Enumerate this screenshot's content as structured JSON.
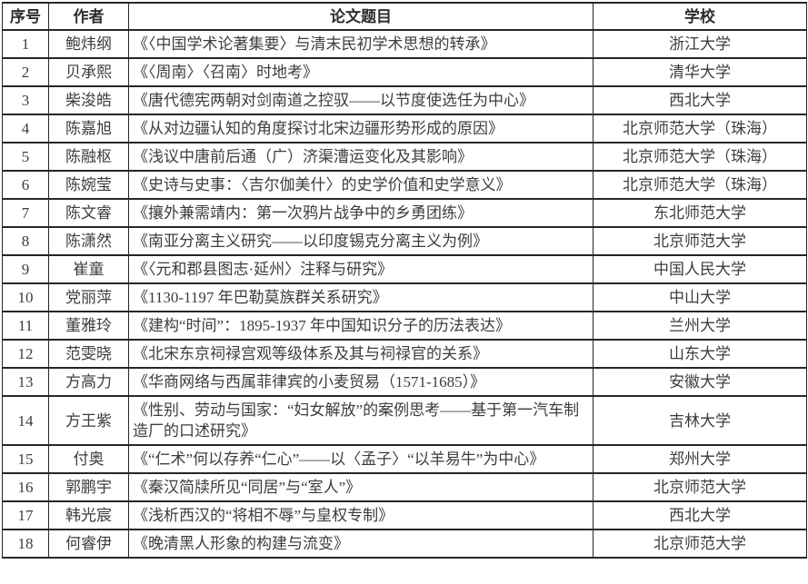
{
  "colors": {
    "border": "#262626",
    "text": "#3d3d3d",
    "background": "#ffffff"
  },
  "table": {
    "headers": {
      "no": "序号",
      "author": "作者",
      "title": "论文题目",
      "school": "学校"
    },
    "rows": [
      {
        "no": "1",
        "author": "鲍炜纲",
        "title": "《〈中国学术论著集要〉与清末民初学术思想的转承》",
        "school": "浙江大学"
      },
      {
        "no": "2",
        "author": "贝承熙",
        "title": "《〈周南〉〈召南〉时地考》",
        "school": "清华大学"
      },
      {
        "no": "3",
        "author": "柴浚皓",
        "title": "《唐代德宪两朝对剑南道之控驭——以节度使选任为中心》",
        "school": "西北大学"
      },
      {
        "no": "4",
        "author": "陈嘉旭",
        "title": "《从对边疆认知的角度探讨北宋边疆形势形成的原因》",
        "school": "北京师范大学（珠海）"
      },
      {
        "no": "5",
        "author": "陈融枢",
        "title": "《浅议中唐前后通（广）济渠漕运变化及其影响》",
        "school": "北京师范大学（珠海）"
      },
      {
        "no": "6",
        "author": "陈婉莹",
        "title": "《史诗与史事：〈吉尔伽美什〉的史学价值和史学意义》",
        "school": "北京师范大学（珠海）"
      },
      {
        "no": "7",
        "author": "陈文睿",
        "title": "《攘外兼需靖内：第一次鸦片战争中的乡勇团练》",
        "school": "东北师范大学"
      },
      {
        "no": "8",
        "author": "陈潇然",
        "title": "《南亚分离主义研究——以印度锡克分离主义为例》",
        "school": "北京师范大学"
      },
      {
        "no": "9",
        "author": "崔童",
        "title": "《〈元和郡县图志·延州〉注释与研究》",
        "school": "中国人民大学"
      },
      {
        "no": "10",
        "author": "党丽萍",
        "title": "《1130-1197 年巴勒莫族群关系研究》",
        "school": "中山大学"
      },
      {
        "no": "11",
        "author": "董雅玲",
        "title": "《建构“时间”：1895-1937 年中国知识分子的历法表达》",
        "school": "兰州大学"
      },
      {
        "no": "12",
        "author": "范雯晓",
        "title": "《北宋东京祠禄宫观等级体系及其与祠禄官的关系》",
        "school": "山东大学"
      },
      {
        "no": "13",
        "author": "方高力",
        "title": "《华商网络与西属菲律宾的小麦贸易（1571-1685）》",
        "school": "安徽大学"
      },
      {
        "no": "14",
        "author": "方王紫",
        "title": "《性别、劳动与国家：“妇女解放”的案例思考——基于第一汽车制造厂的口述研究》",
        "school": "吉林大学"
      },
      {
        "no": "15",
        "author": "付奥",
        "title": "《“仁术”何以存养“仁心”——以〈孟子〉“以羊易牛”为中心》",
        "school": "郑州大学"
      },
      {
        "no": "16",
        "author": "郭鹏宇",
        "title": "《秦汉简牍所见“同居”与“室人”》",
        "school": "北京师范大学"
      },
      {
        "no": "17",
        "author": "韩光宸",
        "title": "《浅析西汉的“将相不辱”与皇权专制》",
        "school": "西北大学"
      },
      {
        "no": "18",
        "author": "何睿伊",
        "title": "《晚清黑人形象的构建与流变》",
        "school": "北京师范大学"
      }
    ]
  }
}
